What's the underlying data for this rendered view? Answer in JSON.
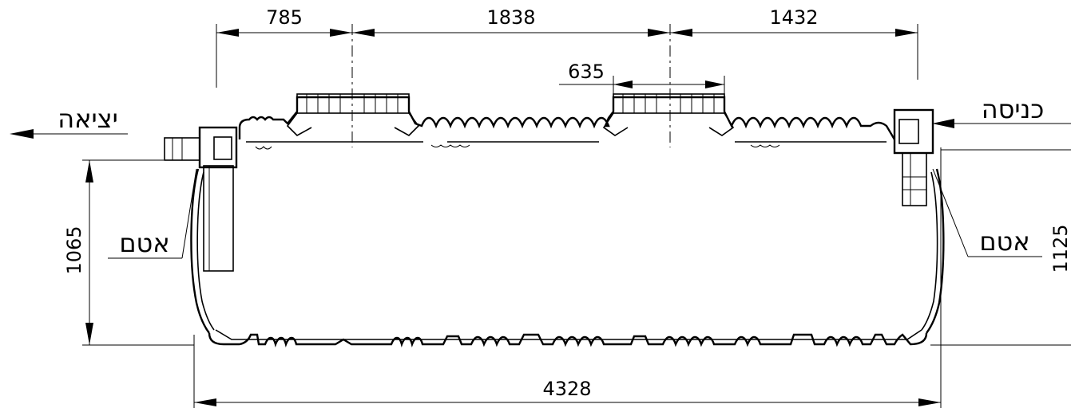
{
  "dimensions": {
    "top_left": "785",
    "top_middle": "1838",
    "top_right": "1432",
    "manhole_width": "635",
    "overall_length": "4328",
    "outlet_height": "1065",
    "inlet_height": "1125"
  },
  "labels": {
    "outlet": "יציאה",
    "inlet": "כניסה",
    "plug_left": "אטם",
    "plug_right": "אטם"
  }
}
